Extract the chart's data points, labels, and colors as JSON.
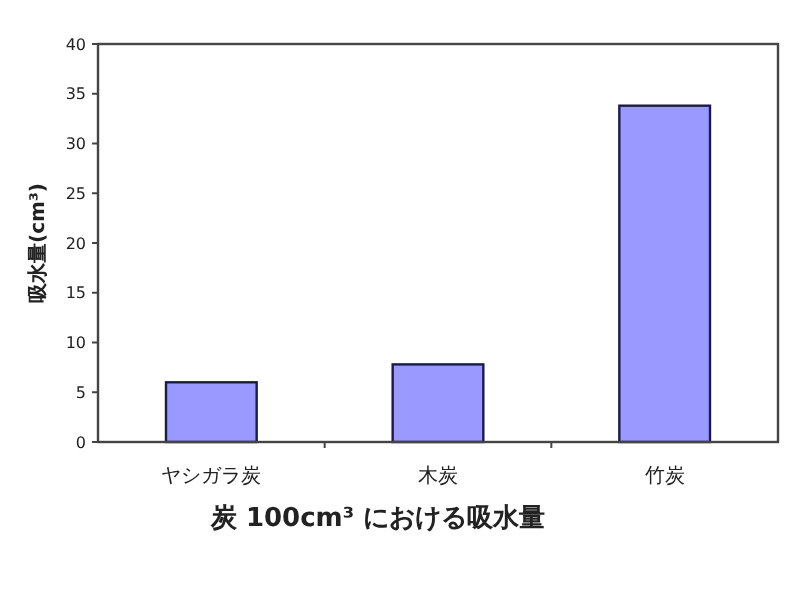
{
  "chart_data": {
    "type": "bar",
    "title": "炭 100cm³ における吸水量",
    "ylabel": "吸水量(cm³)",
    "categories": [
      "ヤシガラ炭",
      "木炭",
      "竹炭"
    ],
    "values": [
      6,
      7.8,
      33.8
    ],
    "color": "#9999ff",
    "ylim": [
      0,
      40
    ],
    "yticks": [
      0,
      5,
      10,
      15,
      20,
      25,
      30,
      35,
      40
    ],
    "grid": false
  }
}
